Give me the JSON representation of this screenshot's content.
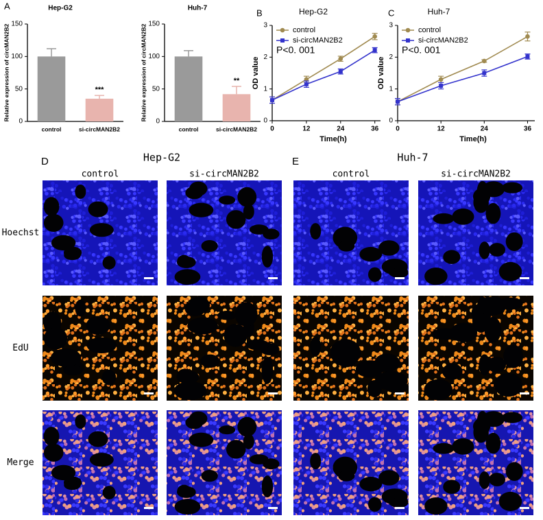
{
  "chart_data": [
    {
      "type": "bar",
      "title": "Hep-G2",
      "y_label": "Relative expression of circMAN2B2",
      "categories": [
        "control",
        "si-circMAN2B2"
      ],
      "values": [
        100,
        35
      ],
      "errors": [
        12,
        5
      ],
      "colors": [
        "#9a9a9a",
        "#e8b4ae"
      ],
      "ylim": [
        0,
        150
      ],
      "yticks": [
        0,
        50,
        100,
        150
      ],
      "annotations": [
        {
          "x": "si-circMAN2B2",
          "text": "***"
        }
      ]
    },
    {
      "type": "bar",
      "title": "Huh-7",
      "y_label": "Relative expression of circMAN2B2",
      "categories": [
        "control",
        "si-circMAN2B2"
      ],
      "values": [
        100,
        42
      ],
      "errors": [
        9,
        12
      ],
      "colors": [
        "#9a9a9a",
        "#e8b4ae"
      ],
      "ylim": [
        0,
        150
      ],
      "yticks": [
        0,
        50,
        100,
        150
      ],
      "annotations": [
        {
          "x": "si-circMAN2B2",
          "text": "**"
        }
      ]
    },
    {
      "type": "line",
      "title": "Hep-G2",
      "x_label": "Time(h)",
      "y_label": "OD value",
      "x": [
        0,
        12,
        24,
        36
      ],
      "series": [
        {
          "name": "control",
          "color": "#a08a50",
          "marker": "circle",
          "values": [
            0.65,
            1.3,
            1.95,
            2.65
          ],
          "errors": [
            0.1,
            0.1,
            0.08,
            0.1
          ]
        },
        {
          "name": "si-circMAN2B2",
          "color": "#3333cc",
          "marker": "square",
          "values": [
            0.65,
            1.15,
            1.55,
            2.22
          ],
          "errors": [
            0.1,
            0.1,
            0.08,
            0.08
          ]
        }
      ],
      "xlim": [
        0,
        38
      ],
      "ylim": [
        0,
        3
      ],
      "xticks": [
        0,
        12,
        24,
        36
      ],
      "yticks": [
        0,
        1,
        2,
        3
      ],
      "legend": "upper left",
      "annotations": [
        "P<0. 001"
      ]
    },
    {
      "type": "line",
      "title": "Huh-7",
      "x_label": "Time(h)",
      "y_label": "OD value",
      "x": [
        0,
        12,
        24,
        36
      ],
      "series": [
        {
          "name": "control",
          "color": "#a08a50",
          "marker": "circle",
          "values": [
            0.6,
            1.3,
            1.88,
            2.65
          ],
          "errors": [
            0.1,
            0.1,
            0.04,
            0.14
          ]
        },
        {
          "name": "si-circMAN2B2",
          "color": "#3333cc",
          "marker": "square",
          "values": [
            0.6,
            1.1,
            1.5,
            2.02
          ],
          "errors": [
            0.1,
            0.1,
            0.1,
            0.08
          ]
        }
      ],
      "xlim": [
        0,
        38
      ],
      "ylim": [
        0,
        3
      ],
      "xticks": [
        0,
        12,
        24,
        36
      ],
      "yticks": [
        0,
        1,
        2,
        3
      ],
      "legend": "upper left",
      "annotations": [
        "P<0. 001"
      ]
    }
  ],
  "panel_labels": [
    "A",
    "B",
    "C",
    "D",
    "E"
  ],
  "micrographs": [
    {
      "title": "Hep-G2",
      "columns": [
        "control",
        "si-circMAN2B2"
      ]
    },
    {
      "title": "Huh-7",
      "columns": [
        "control",
        "si-circMAN2B2"
      ]
    }
  ],
  "rows": [
    "Hoechst",
    "EdU",
    "Merge"
  ]
}
